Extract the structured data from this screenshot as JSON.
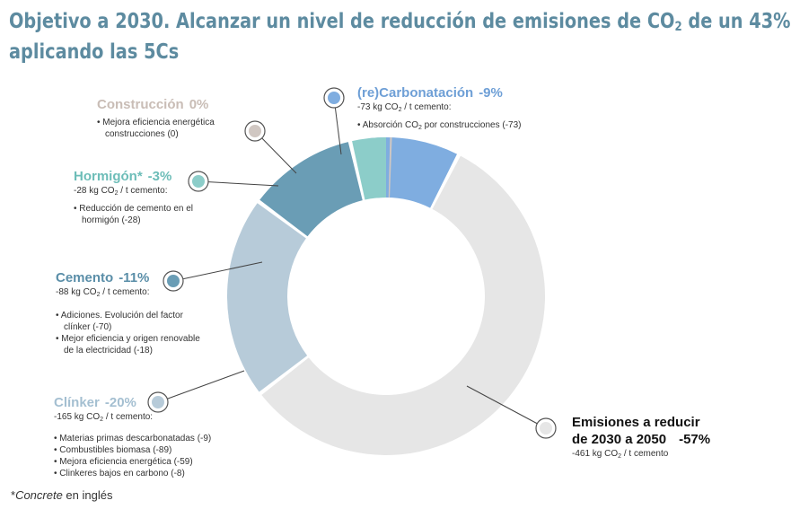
{
  "title": {
    "line1_before": "Objetivo a 2030. Alcanzar un nivel de reducción de emisiones de CO",
    "line1_sub": "2",
    "line1_after": " de un 43%",
    "line2": "aplicando las 5Cs"
  },
  "colors": {
    "title": "#5d8ba0",
    "construccion": "#d0c7c2",
    "recarbonatacion": "#7fade0",
    "hormigon": "#8ccdc9",
    "cemento": "#6a9db5",
    "clinker": "#b7cbd9",
    "emisiones": "#e6e6e6"
  },
  "chart_data": {
    "type": "pie",
    "donut": true,
    "unit": "kg CO2 / t cemento",
    "slices": [
      {
        "key": "recarbonatacion",
        "label": "(re)Carbonatación",
        "percent": -9,
        "value": -73
      },
      {
        "key": "emisiones",
        "label": "Emisiones a reducir de 2030 a 2050",
        "percent": -57,
        "value": -461
      },
      {
        "key": "clinker",
        "label": "Clínker",
        "percent": -20,
        "value": -165
      },
      {
        "key": "cemento",
        "label": "Cemento",
        "percent": -11,
        "value": -88
      },
      {
        "key": "hormigon",
        "label": "Hormigón*",
        "percent": -3,
        "value": -28
      },
      {
        "key": "construccion",
        "label": "Construcción",
        "percent": 0,
        "value": 0
      }
    ]
  },
  "labels": {
    "construccion": {
      "name": "Construcción",
      "pct": "0%",
      "bullets": [
        "Mejora eficiencia energética construcciones (0)"
      ]
    },
    "recarbonatacion": {
      "name": "(re)Carbonatación",
      "pct": "-9%",
      "sub_pre": "-73 kg CO",
      "sub_sub": "2",
      "sub_post": " / t cemento:",
      "bullet_pre": "Absorción CO",
      "bullet_sub": "2",
      "bullet_post": " por construcciones (-73)"
    },
    "hormigon": {
      "name": "Hormigón*",
      "pct": "-3%",
      "sub_pre": "-28 kg CO",
      "sub_sub": "2",
      "sub_post": " / t cemento:",
      "bullets": [
        "Reducción de cemento en el hormigón (-28)"
      ]
    },
    "cemento": {
      "name": "Cemento",
      "pct": "-11%",
      "sub_pre": "-88 kg CO",
      "sub_sub": "2",
      "sub_post": " / t cemento:",
      "bullets": [
        "Adiciones. Evolución del factor clínker (-70)",
        "Mejor eficiencia y origen renovable de la electricidad (-18)"
      ]
    },
    "clinker": {
      "name": "Clínker",
      "pct": "-20%",
      "sub_pre": "-165 kg CO",
      "sub_sub": "2",
      "sub_post": " / t cemento:",
      "bullets": [
        "Materias primas descarbonatadas (-9)",
        "Combustibles biomasa (-89)",
        "Mejora eficiencia energética (-59)",
        "Clinkeres bajos en carbono (-8)"
      ]
    },
    "emisiones": {
      "name_line1": "Emisiones a reducir",
      "name_line2": "de 2030 a 2050",
      "pct": "-57%",
      "sub_pre": "-461 kg CO",
      "sub_sub": "2",
      "sub_post": " / t cemento"
    }
  },
  "footnote": {
    "star": "*",
    "italic": "Concrete",
    "rest": " en inglés"
  }
}
